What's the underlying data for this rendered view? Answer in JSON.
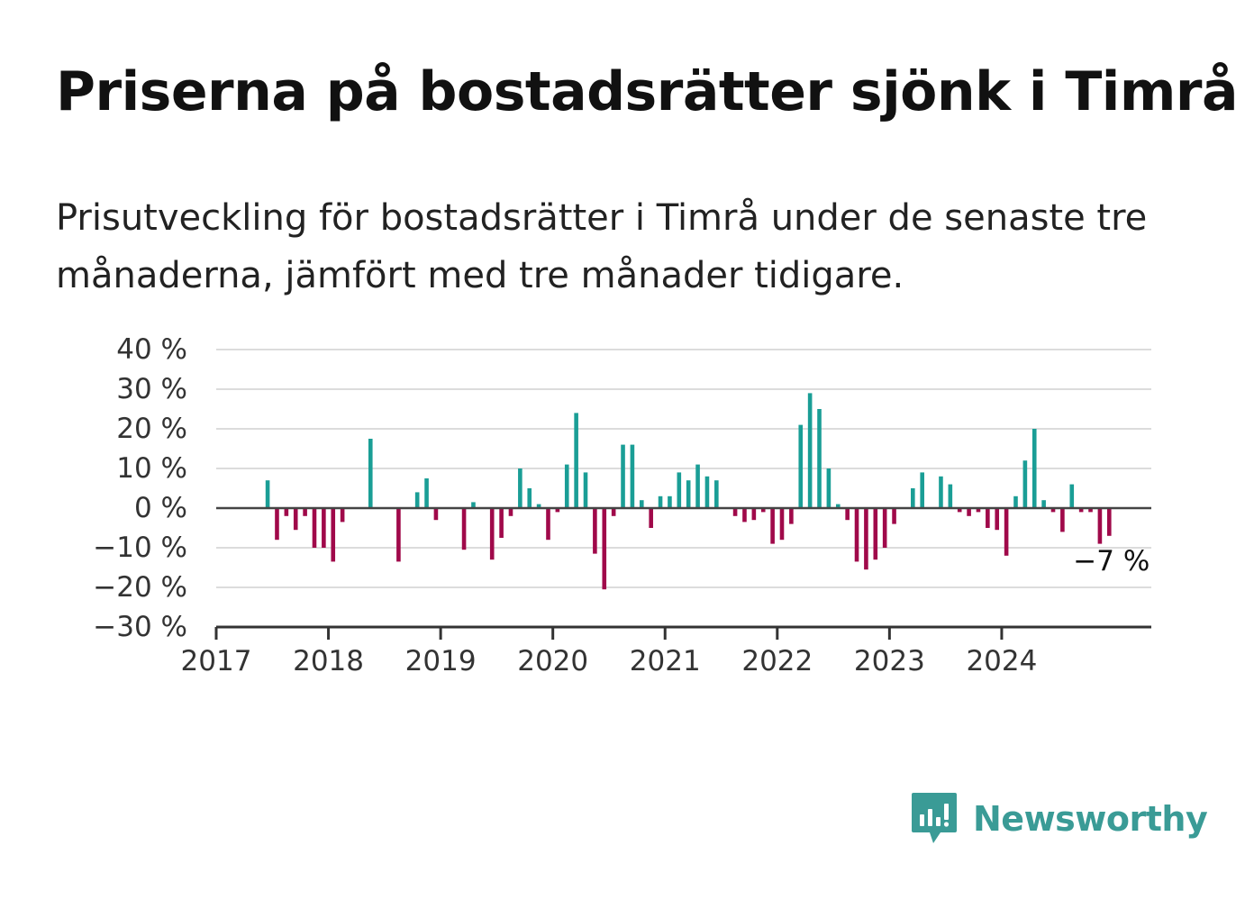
{
  "header": {
    "title": "Priserna på bostadsrätter sjönk i Timrå",
    "subtitle": "Prisutveckling för bostadsrätter i Timrå under de senaste tre månaderna, jämfört med tre månader tidigare."
  },
  "branding": {
    "name": "Newsworthy",
    "icon": "newsworthy-logo-icon",
    "color": "#3a9b96"
  },
  "chart_data": {
    "type": "bar",
    "y_unit": "%",
    "ylim": [
      -30,
      40
    ],
    "y_ticks": [
      40,
      30,
      20,
      10,
      0,
      -10,
      -20,
      -30
    ],
    "y_tick_labels": [
      "40 %",
      "30 %",
      "20 %",
      "10 %",
      "0 %",
      "−10 %",
      "−20 %",
      "−30 %"
    ],
    "xlim": [
      "2017-01",
      "2025-05"
    ],
    "x_tick_labels": [
      "2017",
      "2018",
      "2019",
      "2020",
      "2021",
      "2022",
      "2023",
      "2024"
    ],
    "grid": true,
    "colors": {
      "positive": "#1a9e96",
      "negative": "#a0094a"
    },
    "annotation": {
      "text": "−7 %",
      "month": "2024-12"
    },
    "series": [
      {
        "values": [
          [
            "2017-06",
            7
          ],
          [
            "2017-07",
            -8
          ],
          [
            "2017-08",
            -2
          ],
          [
            "2017-09",
            -5.5
          ],
          [
            "2017-10",
            -2
          ],
          [
            "2017-11",
            -10
          ],
          [
            "2017-12",
            -10
          ],
          [
            "2018-01",
            -13.5
          ],
          [
            "2018-02",
            -3.5
          ],
          [
            "2018-05",
            17.5
          ],
          [
            "2018-08",
            -13.5
          ],
          [
            "2018-10",
            4
          ],
          [
            "2018-11",
            7.5
          ],
          [
            "2018-12",
            -3
          ],
          [
            "2019-03",
            -10.5
          ],
          [
            "2019-04",
            1.5
          ],
          [
            "2019-06",
            -13
          ],
          [
            "2019-07",
            -7.5
          ],
          [
            "2019-08",
            -2
          ],
          [
            "2019-09",
            10
          ],
          [
            "2019-10",
            5
          ],
          [
            "2019-11",
            1
          ],
          [
            "2019-12",
            -8
          ],
          [
            "2020-01",
            -1
          ],
          [
            "2020-02",
            11
          ],
          [
            "2020-03",
            24
          ],
          [
            "2020-04",
            9
          ],
          [
            "2020-05",
            -11.5
          ],
          [
            "2020-06",
            -20.5
          ],
          [
            "2020-07",
            -2
          ],
          [
            "2020-08",
            16
          ],
          [
            "2020-09",
            16
          ],
          [
            "2020-10",
            2
          ],
          [
            "2020-11",
            -5
          ],
          [
            "2020-12",
            3
          ],
          [
            "2021-01",
            3
          ],
          [
            "2021-02",
            9
          ],
          [
            "2021-03",
            7
          ],
          [
            "2021-04",
            11
          ],
          [
            "2021-05",
            8
          ],
          [
            "2021-06",
            7
          ],
          [
            "2021-08",
            -2
          ],
          [
            "2021-09",
            -3.5
          ],
          [
            "2021-10",
            -3
          ],
          [
            "2021-11",
            -1
          ],
          [
            "2021-12",
            -9
          ],
          [
            "2022-01",
            -8
          ],
          [
            "2022-02",
            -4
          ],
          [
            "2022-03",
            21
          ],
          [
            "2022-04",
            29
          ],
          [
            "2022-05",
            25
          ],
          [
            "2022-06",
            10
          ],
          [
            "2022-07",
            1
          ],
          [
            "2022-08",
            -3
          ],
          [
            "2022-09",
            -13.5
          ],
          [
            "2022-10",
            -15.5
          ],
          [
            "2022-11",
            -13
          ],
          [
            "2022-12",
            -10
          ],
          [
            "2023-01",
            -4
          ],
          [
            "2023-03",
            5
          ],
          [
            "2023-04",
            9
          ],
          [
            "2023-06",
            8
          ],
          [
            "2023-07",
            6
          ],
          [
            "2023-08",
            -1
          ],
          [
            "2023-09",
            -2
          ],
          [
            "2023-10",
            -1
          ],
          [
            "2023-11",
            -5
          ],
          [
            "2023-12",
            -5.5
          ],
          [
            "2024-01",
            -12
          ],
          [
            "2024-02",
            3
          ],
          [
            "2024-03",
            12
          ],
          [
            "2024-04",
            20
          ],
          [
            "2024-05",
            2
          ],
          [
            "2024-06",
            -1
          ],
          [
            "2024-07",
            -6
          ],
          [
            "2024-08",
            6
          ],
          [
            "2024-09",
            -1
          ],
          [
            "2024-10",
            -1
          ],
          [
            "2024-11",
            -9
          ],
          [
            "2024-12",
            -7
          ]
        ]
      }
    ]
  }
}
